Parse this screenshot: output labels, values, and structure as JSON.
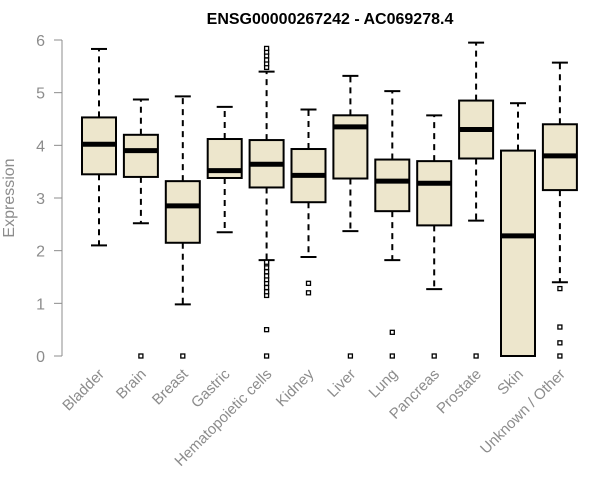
{
  "chart_data": {
    "type": "boxplot",
    "title": "ENSG00000267242 - AC069278.4",
    "xlabel": "",
    "ylabel": "Expression",
    "ylim": [
      0,
      6
    ],
    "yticks": [
      "0",
      "1",
      "2",
      "3",
      "4",
      "5",
      "6"
    ],
    "grid": false,
    "box_color": "#ede6cc",
    "categories": [
      "Bladder",
      "Brain",
      "Breast",
      "Gastric",
      "Hematopoietic cells",
      "Kidney",
      "Liver",
      "Lung",
      "Pancreas",
      "Prostate",
      "Skin",
      "Unknown / Other"
    ],
    "boxes": [
      {
        "min": 2.1,
        "q1": 3.45,
        "median": 4.02,
        "q3": 4.53,
        "max": 5.83,
        "outliers": []
      },
      {
        "min": 2.52,
        "q1": 3.4,
        "median": 3.9,
        "q3": 4.2,
        "max": 4.87,
        "outliers": [
          0
        ]
      },
      {
        "min": 0.98,
        "q1": 2.15,
        "median": 2.85,
        "q3": 3.32,
        "max": 4.93,
        "outliers": [
          0
        ]
      },
      {
        "min": 2.35,
        "q1": 3.38,
        "median": 3.52,
        "q3": 4.12,
        "max": 4.73,
        "outliers": []
      },
      {
        "min": 1.82,
        "q1": 3.2,
        "median": 3.64,
        "q3": 4.1,
        "max": 5.4,
        "outliers": [
          0,
          0.5,
          1.15,
          1.22,
          1.3,
          1.38,
          1.45,
          1.52,
          1.6,
          1.68,
          1.75,
          1.78,
          5.48,
          5.55,
          5.62,
          5.7,
          5.77,
          5.84
        ]
      },
      {
        "min": 1.88,
        "q1": 2.92,
        "median": 3.43,
        "q3": 3.93,
        "max": 4.68,
        "outliers": [
          1.2,
          1.38
        ]
      },
      {
        "min": 2.37,
        "q1": 3.37,
        "median": 4.35,
        "q3": 4.57,
        "max": 5.32,
        "outliers": [
          0
        ]
      },
      {
        "min": 1.82,
        "q1": 2.75,
        "median": 3.32,
        "q3": 3.73,
        "max": 5.03,
        "outliers": [
          0,
          0.45
        ]
      },
      {
        "min": 1.27,
        "q1": 2.48,
        "median": 3.28,
        "q3": 3.7,
        "max": 4.57,
        "outliers": [
          0
        ]
      },
      {
        "min": 2.57,
        "q1": 3.75,
        "median": 4.3,
        "q3": 4.85,
        "max": 5.95,
        "outliers": [
          0
        ]
      },
      {
        "min": 0,
        "q1": 0,
        "median": 2.28,
        "q3": 3.9,
        "max": 4.8,
        "outliers": []
      },
      {
        "min": 1.4,
        "q1": 3.15,
        "median": 3.8,
        "q3": 4.4,
        "max": 5.57,
        "outliers": [
          0,
          0.25,
          0.55,
          1.28
        ]
      }
    ]
  }
}
